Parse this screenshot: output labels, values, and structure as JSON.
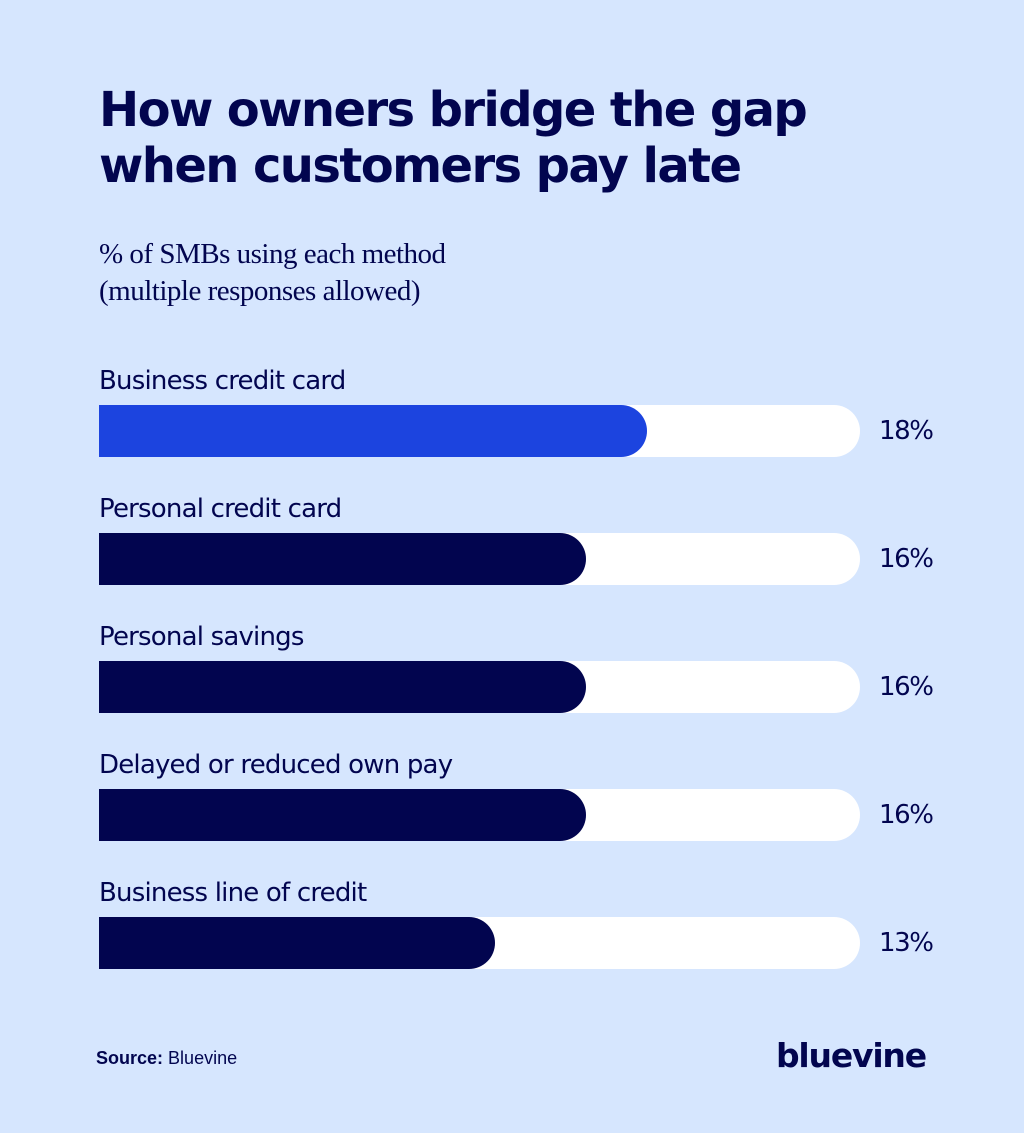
{
  "header": {
    "title_line1": "How owners bridge the gap",
    "title_line2": "when customers pay late",
    "subtitle_line1": "% of SMBs using each method",
    "subtitle_line2": "(multiple responses allowed)"
  },
  "colors": {
    "background": "#d6e6fe",
    "highlight_bar": "#1c44df",
    "default_bar": "#02054f",
    "track": "#ffffff",
    "text": "#02054f"
  },
  "chart_data": {
    "type": "bar",
    "orientation": "horizontal",
    "title": "How owners bridge the gap when customers pay late",
    "subtitle": "% of SMBs using each method (multiple responses allowed)",
    "categories": [
      "Business credit card",
      "Personal credit card",
      "Personal savings",
      "Delayed or reduced own pay",
      "Business line of credit"
    ],
    "values": [
      18,
      16,
      16,
      16,
      13
    ],
    "value_labels": [
      "18%",
      "16%",
      "16%",
      "16%",
      "13%"
    ],
    "unit": "%",
    "xlabel": "",
    "ylabel": "",
    "xlim": [
      0,
      25
    ],
    "grid": false,
    "legend": null,
    "highlighted_category": "Business credit card"
  },
  "footer": {
    "source_label": "Source:",
    "source_value": "Bluevine",
    "logo_text": "bluevine"
  }
}
